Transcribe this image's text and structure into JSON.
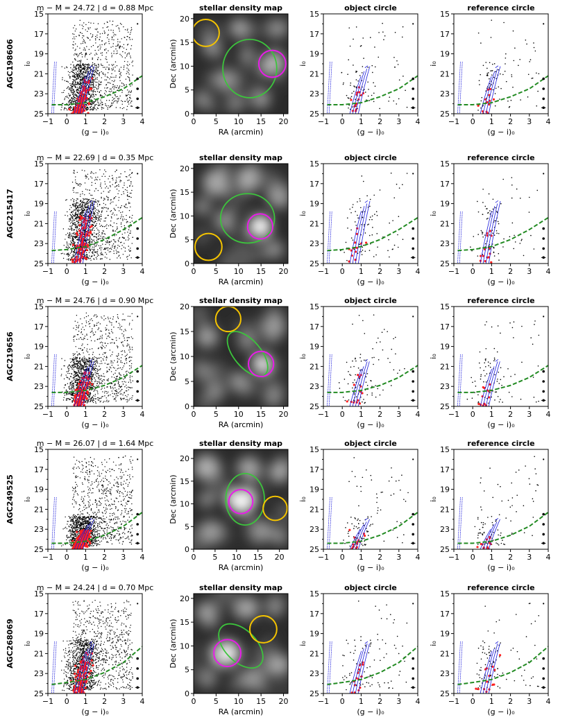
{
  "chart_data": {
    "type": "scatter",
    "column_titles": {
      "density": "stellar density map",
      "object": "object circle",
      "reference": "reference circle"
    },
    "title_colors": {
      "object": "#e81ce8",
      "reference": "#f5c400"
    },
    "circle_colors": {
      "object": "#e81ce8",
      "reference": "#f5c400",
      "ellipse": "#3cc43c"
    },
    "line_colors": {
      "completeness": "#228b22",
      "isochrone": "#1a1adb",
      "member": "#ff2020",
      "star": "#000000"
    },
    "cmd_axes": {
      "xlabel": "(g − i)₀",
      "ylabel": "i₀",
      "xlim": [
        -1,
        4
      ],
      "ylim": [
        25,
        15
      ],
      "xticks": [
        "−1",
        "0",
        "1",
        "2",
        "3",
        "4"
      ],
      "yticks": [
        "15",
        "17",
        "19",
        "21",
        "23",
        "25"
      ]
    },
    "map_axes": {
      "xlabel": "RA (arcmin)",
      "ylabel": "Dec (arcmin)"
    },
    "rows": [
      {
        "name": "AGC198606",
        "distance_label": "m − M = 24.72 | d = 0.88 Mpc",
        "dm": 24.72,
        "rgb_tip": 20.5,
        "completeness": [
          [
            -0.8,
            24.1
          ],
          [
            0,
            24.1
          ],
          [
            1,
            23.9
          ],
          [
            2,
            23.3
          ],
          [
            3,
            22.5
          ],
          [
            4,
            21.2
          ]
        ],
        "map": {
          "xlim": [
            0,
            21
          ],
          "ylim": [
            0,
            21
          ],
          "xticks": [
            0,
            5,
            10,
            15,
            20
          ],
          "yticks": [
            0,
            5,
            10,
            15,
            20
          ],
          "ellipse": {
            "x": 12.5,
            "y": 9.5,
            "rx": 6,
            "ry": 6.5,
            "angle": 0
          },
          "object_circle": {
            "x": 17.5,
            "y": 10.5,
            "r": 3
          },
          "reference_circle": {
            "x": 2.7,
            "y": 17,
            "r": 3
          },
          "blobs": [
            [
              17.5,
              10.5,
              2.5,
              0.6
            ],
            [
              4,
              14,
              2,
              0.4
            ],
            [
              10,
              18,
              2,
              0.5
            ],
            [
              7,
              7,
              2.5,
              0.4
            ],
            [
              15,
              3,
              2,
              0.45
            ],
            [
              2,
              3,
              2,
              0.35
            ],
            [
              19,
              18,
              2,
              0.4
            ],
            [
              12,
              12,
              1.8,
              0.35
            ],
            [
              9,
              2,
              1.8,
              0.3
            ]
          ]
        }
      },
      {
        "name": "AGC215417",
        "distance_label": "m − M = 22.69 | d = 0.35 Mpc",
        "dm": 22.69,
        "rgb_tip": 19.0,
        "completeness": [
          [
            -0.8,
            23.7
          ],
          [
            0,
            23.6
          ],
          [
            1,
            23.3
          ],
          [
            2,
            22.6
          ],
          [
            3,
            21.6
          ],
          [
            4,
            20.4
          ]
        ],
        "map": {
          "xlim": [
            0,
            21
          ],
          "ylim": [
            0,
            21
          ],
          "xticks": [
            0,
            5,
            10,
            15,
            20
          ],
          "yticks": [
            0,
            5,
            10,
            15,
            20
          ],
          "ellipse": {
            "x": 12,
            "y": 9.5,
            "rx": 6,
            "ry": 5.5,
            "angle": 0
          },
          "object_circle": {
            "x": 14.8,
            "y": 7.8,
            "r": 2.8
          },
          "reference_circle": {
            "x": 3.3,
            "y": 3.5,
            "r": 3
          },
          "blobs": [
            [
              14.8,
              7.8,
              2.5,
              1.0
            ],
            [
              5,
              17,
              3,
              0.5
            ],
            [
              12,
              18,
              2.5,
              0.55
            ],
            [
              19,
              14,
              2.5,
              0.45
            ],
            [
              7,
              9,
              2.5,
              0.35
            ],
            [
              18,
              3,
              2,
              0.4
            ],
            [
              2,
              12,
              2,
              0.3
            ]
          ]
        }
      },
      {
        "name": "AGC219656",
        "distance_label": "m − M = 24.76 | d = 0.90 Mpc",
        "dm": 24.76,
        "rgb_tip": 20.6,
        "completeness": [
          [
            -0.8,
            23.6
          ],
          [
            0,
            23.6
          ],
          [
            1,
            23.4
          ],
          [
            2,
            22.9
          ],
          [
            3,
            22.1
          ],
          [
            4,
            20.9
          ]
        ],
        "map": {
          "xlim": [
            0,
            21
          ],
          "ylim": [
            0,
            20
          ],
          "xticks": [
            0,
            5,
            10,
            15,
            20
          ],
          "yticks": [
            0,
            5,
            10,
            15,
            20
          ],
          "ellipse": {
            "x": 12,
            "y": 10.5,
            "rx": 3,
            "ry": 6,
            "angle": -40
          },
          "object_circle": {
            "x": 15,
            "y": 8.5,
            "r": 2.8
          },
          "reference_circle": {
            "x": 7.7,
            "y": 17.5,
            "r": 2.8
          },
          "blobs": [
            [
              15,
              8.5,
              1.8,
              1.0
            ],
            [
              3,
              14,
              2.5,
              0.45
            ],
            [
              10,
              5,
              2.2,
              0.4
            ],
            [
              18,
              16,
              2.5,
              0.45
            ],
            [
              5,
              3,
              2,
              0.35
            ],
            [
              18,
              2,
              2,
              0.35
            ],
            [
              12,
              13,
              2,
              0.35
            ],
            [
              2,
              7,
              2,
              0.3
            ]
          ]
        }
      },
      {
        "name": "AGC249525",
        "distance_label": "m − M = 26.07 | d = 1.64 Mpc",
        "dm": 26.07,
        "rgb_tip": 22.2,
        "completeness": [
          [
            -0.8,
            24.4
          ],
          [
            0,
            24.4
          ],
          [
            1,
            24.2
          ],
          [
            2,
            23.6
          ],
          [
            3,
            22.7
          ],
          [
            4,
            21.3
          ]
        ],
        "map": {
          "xlim": [
            0,
            22
          ],
          "ylim": [
            0,
            22
          ],
          "xticks": [
            0,
            5,
            10,
            15,
            20
          ],
          "yticks": [
            0,
            5,
            10,
            15,
            20
          ],
          "ellipse": {
            "x": 12,
            "y": 11,
            "rx": 4.5,
            "ry": 6,
            "angle": 0
          },
          "object_circle": {
            "x": 11,
            "y": 10.5,
            "r": 2.8
          },
          "reference_circle": {
            "x": 19,
            "y": 9,
            "r": 2.8
          },
          "blobs": [
            [
              11,
              10.5,
              2.8,
              1.0
            ],
            [
              3,
              18,
              3,
              0.55
            ],
            [
              13,
              18,
              2.5,
              0.5
            ],
            [
              20,
              17,
              2.5,
              0.5
            ],
            [
              4,
              4,
              2.5,
              0.45
            ],
            [
              16,
              4,
              2.5,
              0.4
            ],
            [
              20,
              3,
              2,
              0.35
            ],
            [
              3,
              11,
              2,
              0.3
            ]
          ]
        }
      },
      {
        "name": "AGC268069",
        "distance_label": "m − M = 24.24 | d = 0.70 Mpc",
        "dm": 24.24,
        "rgb_tip": 20.1,
        "completeness": [
          [
            -0.8,
            24.1
          ],
          [
            0,
            23.9
          ],
          [
            1,
            23.6
          ],
          [
            2,
            22.9
          ],
          [
            3,
            21.9
          ],
          [
            4,
            20.3
          ]
        ],
        "map": {
          "xlim": [
            0,
            21
          ],
          "ylim": [
            0,
            21
          ],
          "xticks": [
            0,
            5,
            10,
            15,
            20
          ],
          "yticks": [
            0,
            5,
            10,
            15,
            20
          ],
          "ellipse": {
            "x": 10.5,
            "y": 10,
            "rx": 3.5,
            "ry": 6,
            "angle": -45
          },
          "object_circle": {
            "x": 7.5,
            "y": 8.5,
            "r": 3
          },
          "reference_circle": {
            "x": 15.5,
            "y": 13.5,
            "r": 3
          },
          "blobs": [
            [
              7.5,
              8.5,
              2.8,
              0.9
            ],
            [
              3,
              17,
              2.5,
              0.45
            ],
            [
              12,
              18,
              2.5,
              0.5
            ],
            [
              19,
              6,
              2.5,
              0.5
            ],
            [
              18,
              18,
              2,
              0.35
            ],
            [
              13,
              3,
              2.5,
              0.4
            ],
            [
              3,
              3,
              2,
              0.3
            ]
          ]
        }
      }
    ]
  }
}
